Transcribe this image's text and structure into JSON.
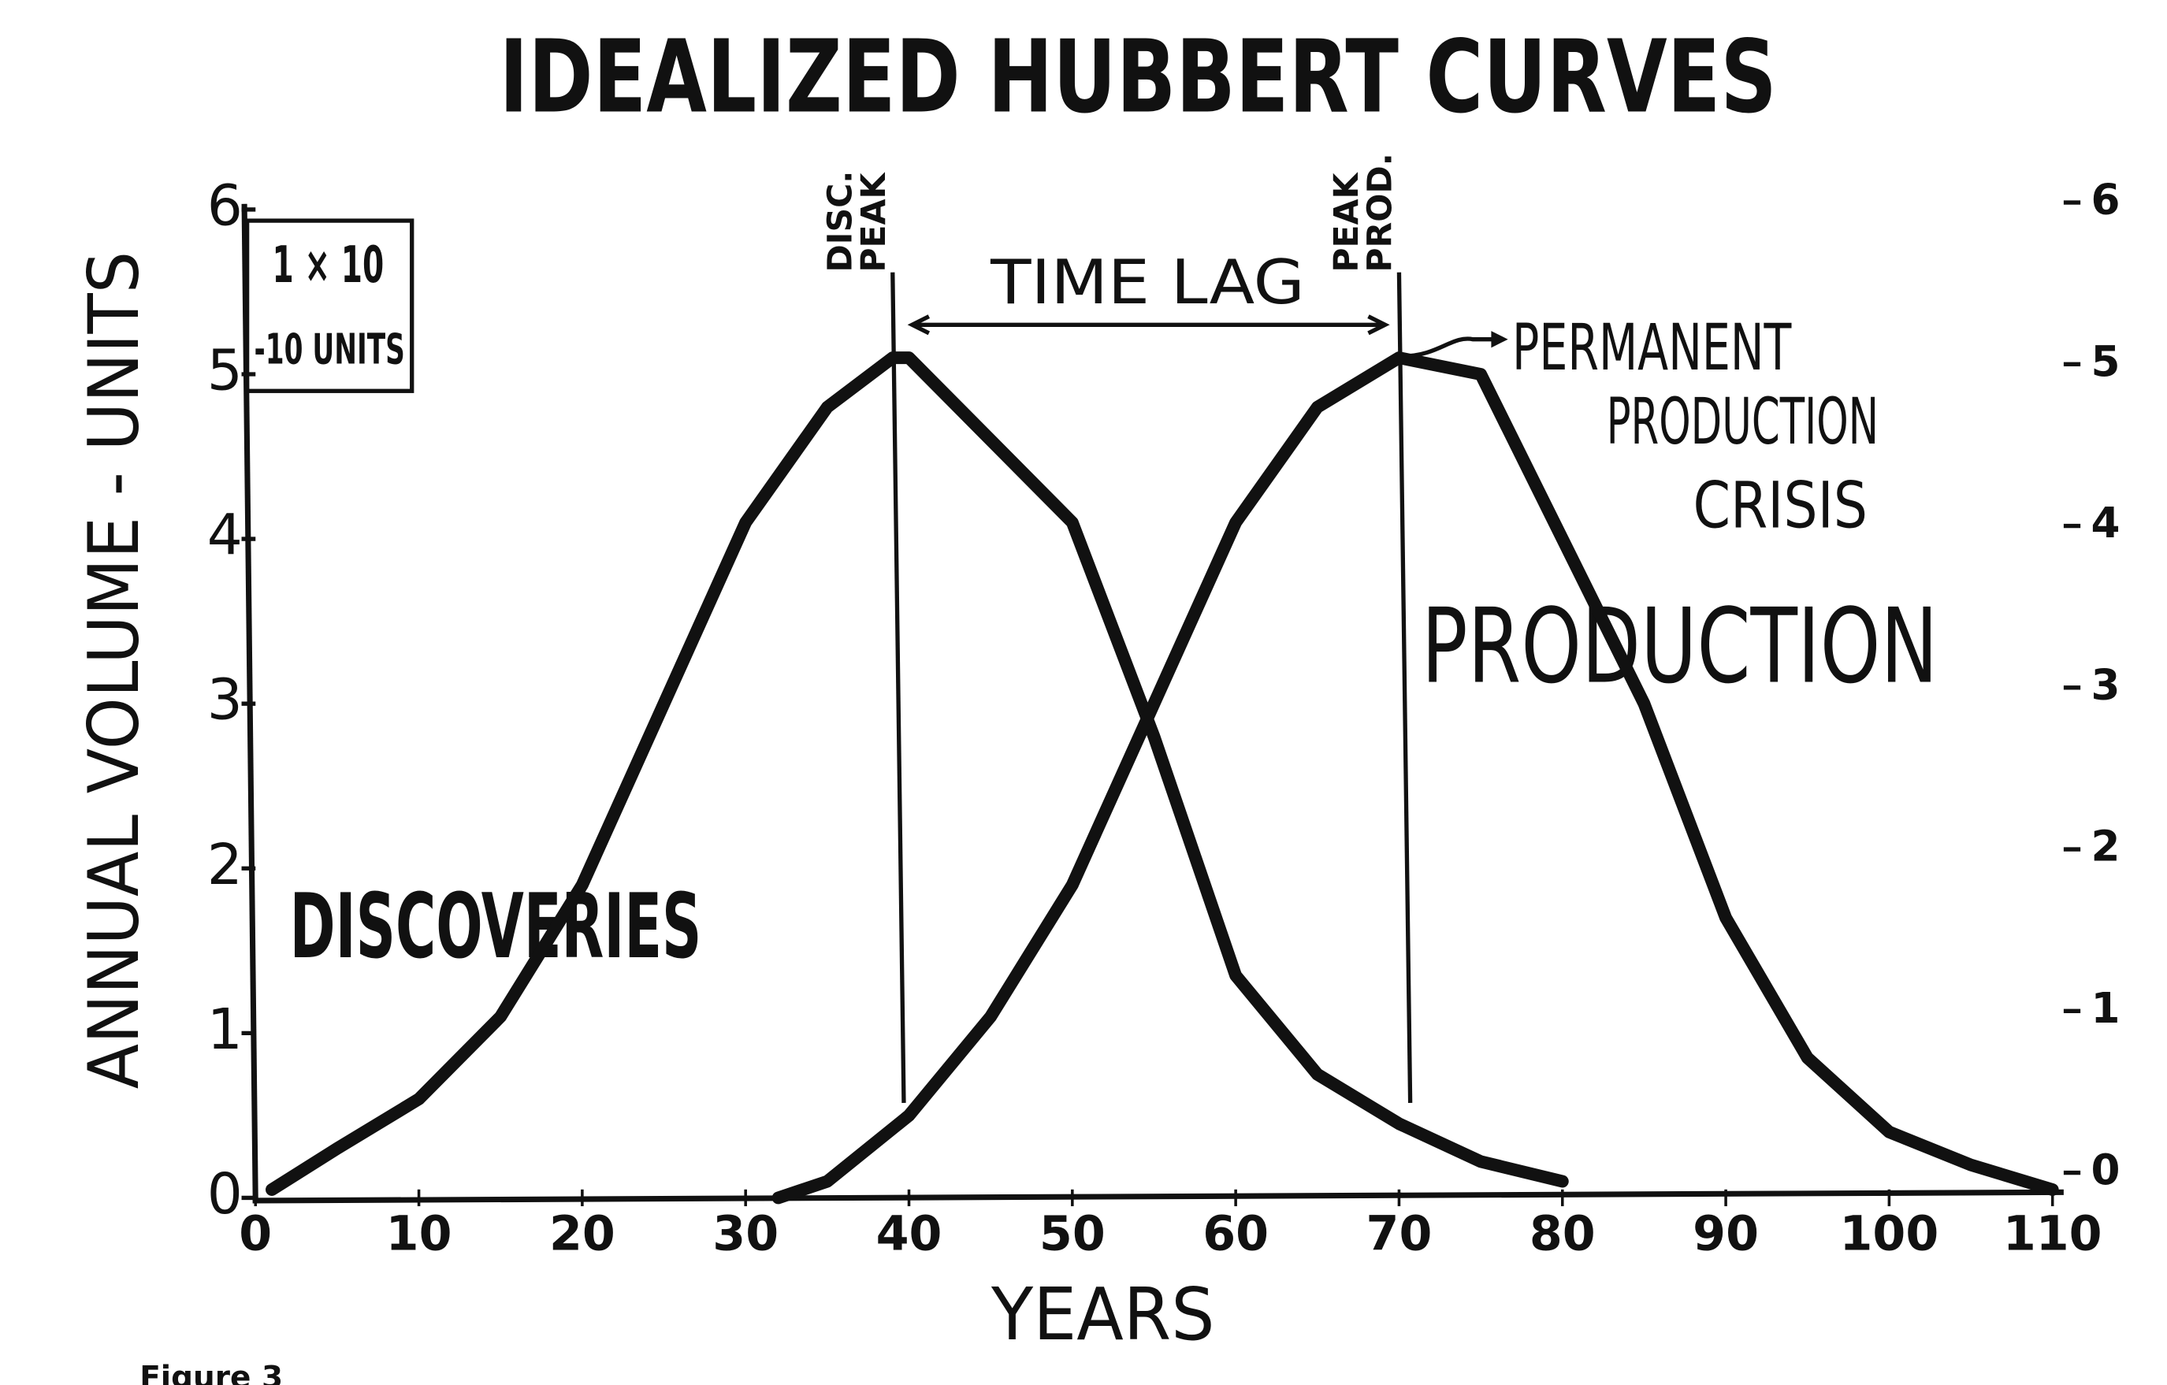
{
  "chart_data": {
    "type": "line",
    "title": "IDEALIZED HUBBERT CURVES",
    "x_label": "YEARS",
    "y_label": "ANNUAL VOLUME - UNITS",
    "caption": "Figure 3",
    "scale_note": [
      "1 × 10",
      "-10 UNITS"
    ],
    "xlim": [
      0,
      110
    ],
    "xticks": [
      0,
      10,
      20,
      30,
      40,
      50,
      60,
      70,
      80,
      90,
      100,
      110
    ],
    "ylim": [
      0,
      6
    ],
    "yticks": [
      0,
      1,
      2,
      3,
      4,
      5,
      6
    ],
    "y2lim": [
      0,
      6
    ],
    "y2ticks": [
      0,
      1,
      2,
      3,
      4,
      5,
      6
    ],
    "color": "#111111",
    "series": [
      {
        "name": "DISCOVERIES",
        "color": "#111111",
        "x": [
          1,
          5,
          10,
          15,
          20,
          25,
          30,
          35,
          39,
          40,
          45,
          50,
          55,
          60,
          65,
          70,
          75,
          80
        ],
        "values": [
          0.05,
          0.3,
          0.6,
          1.1,
          1.9,
          3.0,
          4.1,
          4.8,
          5.1,
          5.1,
          4.6,
          4.1,
          2.8,
          1.35,
          0.75,
          0.45,
          0.22,
          0.1
        ]
      },
      {
        "name": "PRODUCTION",
        "color": "#111111",
        "x": [
          32,
          35,
          40,
          45,
          50,
          55,
          60,
          65,
          70,
          75,
          80,
          85,
          90,
          95,
          100,
          105,
          110
        ],
        "values": [
          0,
          0.1,
          0.5,
          1.1,
          1.9,
          3.0,
          4.1,
          4.8,
          5.1,
          5.0,
          4.0,
          3.0,
          1.7,
          0.85,
          0.4,
          0.2,
          0.05
        ]
      }
    ],
    "annotations": {
      "disc_peak": {
        "lines": [
          "DISC.",
          "PEAK"
        ],
        "x": 39
      },
      "peak_prod": {
        "lines": [
          "PEAK",
          "PROD."
        ],
        "x": 70
      },
      "time_lag": {
        "label": "TIME LAG",
        "from": 39,
        "to": 70,
        "y": 5.3
      },
      "crisis": {
        "lines": [
          "PERMANENT",
          "PRODUCTION",
          "CRISIS"
        ]
      }
    }
  }
}
